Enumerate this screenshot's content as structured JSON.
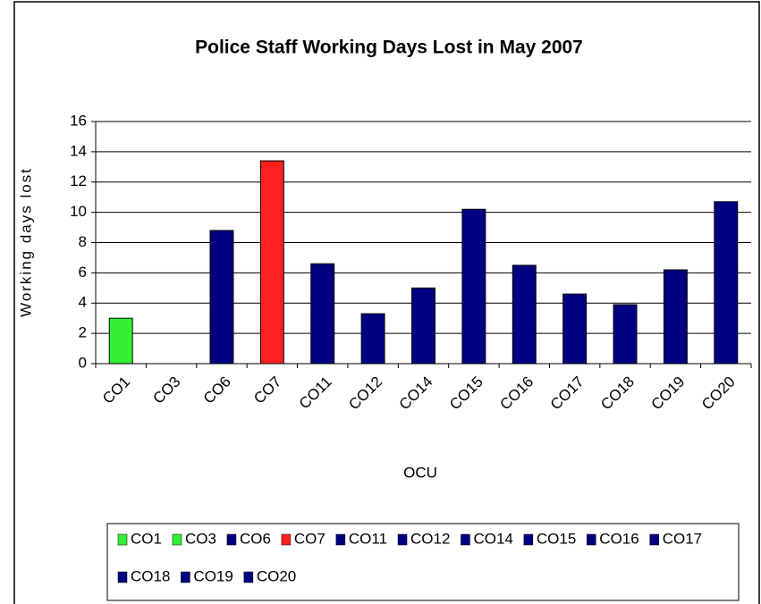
{
  "chart_data": {
    "type": "bar",
    "title": "Police Staff Working Days Lost in May 2007",
    "x_label": "OCU",
    "y_label": "Working days lost",
    "categories": [
      "CO1",
      "CO3",
      "CO6",
      "CO7",
      "CO11",
      "CO12",
      "CO14",
      "CO15",
      "CO16",
      "CO17",
      "CO18",
      "CO19",
      "CO20"
    ],
    "values": [
      3.0,
      0,
      8.8,
      13.4,
      6.6,
      3.3,
      5.0,
      10.2,
      6.5,
      4.6,
      3.9,
      6.2,
      10.7
    ],
    "colors": [
      "#33ee33",
      "#33ee33",
      "#000080",
      "#ff2020",
      "#000080",
      "#000080",
      "#000080",
      "#000080",
      "#000080",
      "#000080",
      "#000080",
      "#000080",
      "#000080"
    ],
    "ylim": [
      0,
      16
    ],
    "yticks": [
      0,
      2,
      4,
      6,
      8,
      10,
      12,
      14,
      16
    ],
    "grid": true,
    "legend": "bottom"
  }
}
